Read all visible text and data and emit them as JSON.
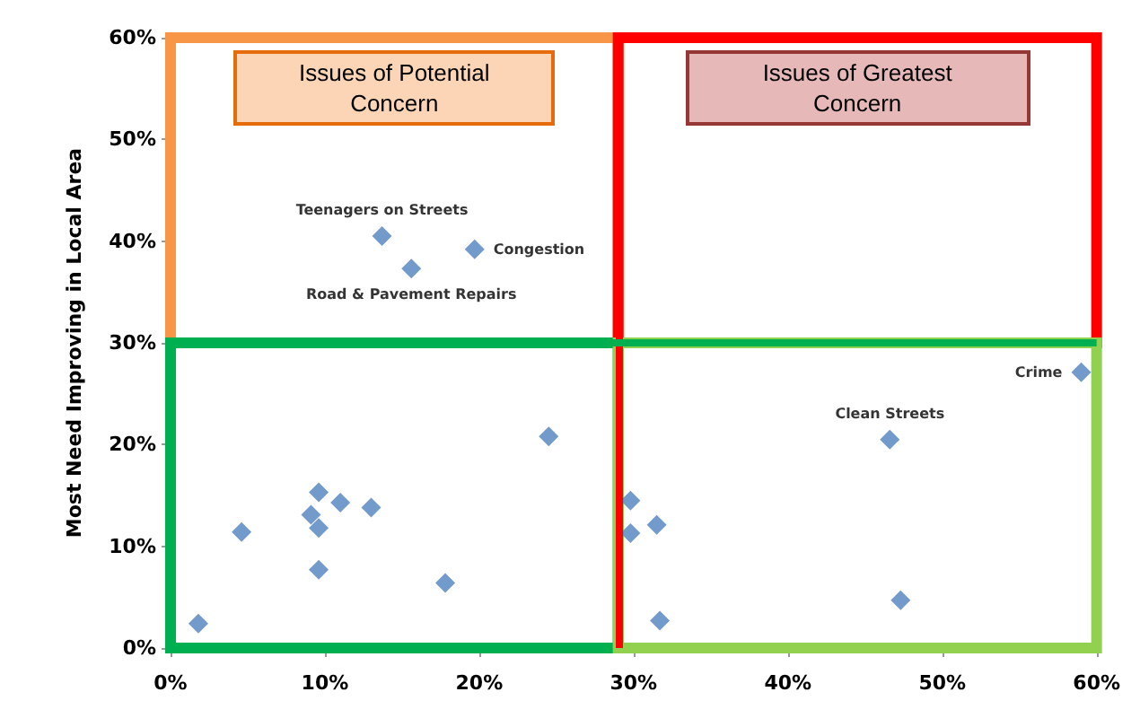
{
  "chart_data": {
    "type": "scatter",
    "ylabel": "Most Need Improving in Local Area",
    "x": [
      13.7,
      15.6,
      19.7,
      59.0,
      46.6,
      1.8,
      4.6,
      9.6,
      9.1,
      9.6,
      9.6,
      11.0,
      13.0,
      17.8,
      24.5,
      29.8,
      29.8,
      31.5,
      31.7,
      47.3
    ],
    "values": [
      40.5,
      37.3,
      39.2,
      27.1,
      20.5,
      2.4,
      11.4,
      15.3,
      13.1,
      11.8,
      7.7,
      14.3,
      13.8,
      6.4,
      20.8,
      14.5,
      11.3,
      12.1,
      2.7,
      4.7
    ],
    "value_labels": [
      "Teenagers on Streets",
      "Road & Pavement Repairs",
      "Congestion",
      "Crime",
      "Clean Streets",
      null,
      null,
      null,
      null,
      null,
      null,
      null,
      null,
      null,
      null,
      null,
      null,
      null,
      null,
      null
    ],
    "color": "#4f81bd",
    "marker": "diamond",
    "xlim": [
      0,
      60
    ],
    "xticks": [
      {
        "value": 0,
        "label": "0%"
      },
      {
        "value": 10,
        "label": "10%"
      },
      {
        "value": 20,
        "label": "20%"
      },
      {
        "value": 30,
        "label": "30%"
      },
      {
        "value": 40,
        "label": "40%"
      },
      {
        "value": 50,
        "label": "50%"
      },
      {
        "value": 60,
        "label": "60%"
      }
    ],
    "ylim": [
      0,
      60
    ],
    "yticks": [
      {
        "value": 0,
        "label": "0%"
      },
      {
        "value": 10,
        "label": "10%"
      },
      {
        "value": 20,
        "label": "20%"
      },
      {
        "value": 30,
        "label": "30%"
      },
      {
        "value": 40,
        "label": "40%"
      },
      {
        "value": 50,
        "label": "50%"
      },
      {
        "value": 60,
        "label": "60%"
      }
    ],
    "ref_lines": [
      {
        "axis": "x",
        "value": 29,
        "color": "#ff0000"
      },
      {
        "axis": "y",
        "value": 30,
        "color": "#00b050"
      }
    ],
    "annotations": [
      "Issues of Potential Concern",
      "Issues of Greatest Concern"
    ],
    "grid": false
  }
}
